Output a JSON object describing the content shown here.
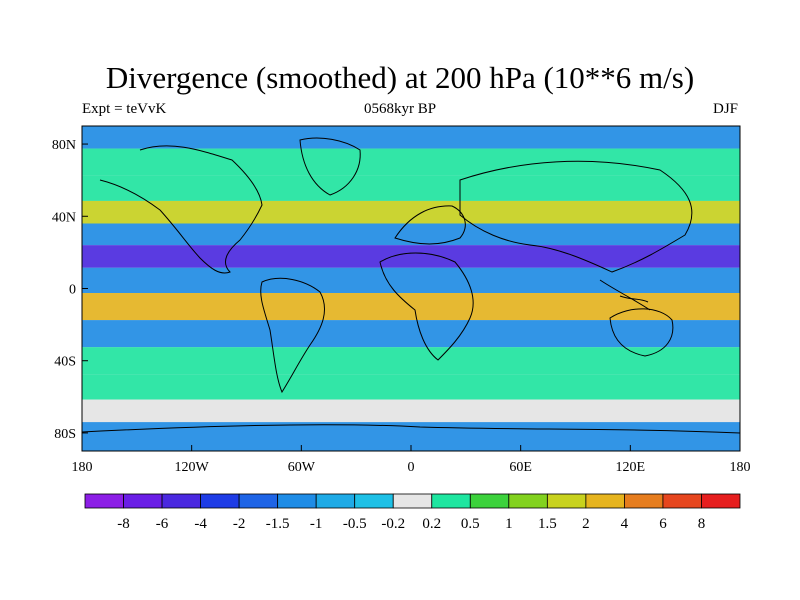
{
  "title": "Divergence (smoothed) at 200 hPa (10**6 m/s)",
  "left_subtitle": "Expt = teVvK",
  "center_subtitle": "0568kyr BP",
  "right_subtitle": "DJF",
  "chart_data": {
    "type": "heatmap",
    "title": "Divergence (smoothed) at 200 hPa (10**6 m/s)",
    "x_range": [
      -180,
      180
    ],
    "y_range": [
      -90,
      90
    ],
    "x_ticks": [
      "180",
      "120W",
      "60W",
      "0",
      "60E",
      "120E",
      "180"
    ],
    "y_ticks": [
      "80N",
      "40N",
      "0",
      "40S",
      "80S"
    ],
    "colorbar": {
      "labels": [
        "-8",
        "-6",
        "-4",
        "-2",
        "-1.5",
        "-1",
        "-0.5",
        "-0.2",
        "0.2",
        "0.5",
        "1",
        "1.5",
        "2",
        "4",
        "6",
        "8"
      ],
      "colors": [
        "#8c1ee6",
        "#6a1ee6",
        "#4a28e0",
        "#1e3ce6",
        "#1e64e6",
        "#1e8ce6",
        "#1eaae6",
        "#1ec0e6",
        "#e6e6e6",
        "#1ee6a0",
        "#3cd23c",
        "#82d21e",
        "#c8d21e",
        "#e6b41e",
        "#e67d1e",
        "#e6461e",
        "#e61e1e"
      ]
    },
    "bands": [
      {
        "lat": 85,
        "value": -1
      },
      {
        "lat": 70,
        "value": 0.5
      },
      {
        "lat": 55,
        "value": 0.5
      },
      {
        "lat": 42,
        "value": 2
      },
      {
        "lat": 30,
        "value": -1
      },
      {
        "lat": 18,
        "value": -4
      },
      {
        "lat": 5,
        "value": -1
      },
      {
        "lat": -10,
        "value": 4
      },
      {
        "lat": -25,
        "value": -1
      },
      {
        "lat": -40,
        "value": 0.5
      },
      {
        "lat": -55,
        "value": 0.5
      },
      {
        "lat": -68,
        "value": 0
      },
      {
        "lat": -80,
        "value": -1
      }
    ]
  }
}
